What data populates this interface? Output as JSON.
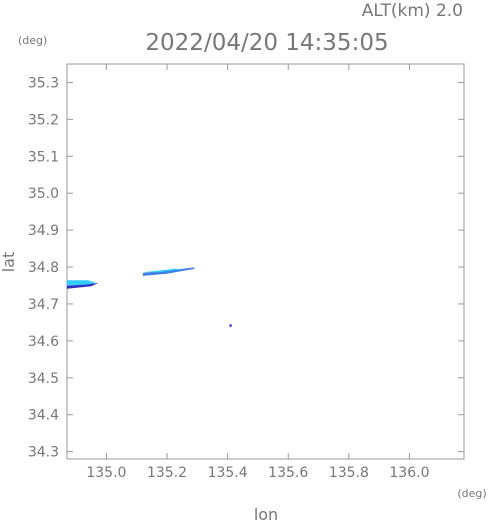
{
  "header": {
    "altitude_text": "ALT(km) 2.0",
    "datetime": "2022/04/20 14:35:05"
  },
  "chart_data": {
    "type": "heatmap",
    "xlabel": "lon",
    "ylabel": "lat",
    "xunit": "(deg)",
    "yunit": "(deg)",
    "xlim": [
      134.87,
      136.18
    ],
    "ylim": [
      34.28,
      35.35
    ],
    "xticks": [
      135.0,
      135.2,
      135.4,
      135.6,
      135.8,
      136.0
    ],
    "yticks": [
      34.3,
      34.4,
      34.5,
      34.6,
      34.7,
      34.8,
      34.9,
      35.0,
      35.1,
      35.2,
      35.3
    ],
    "grid": false,
    "colors": {
      "light": "#33ccff",
      "mid": "#3f7fe6",
      "dark": "#3030c0",
      "axis": "#999999",
      "text": "#777777"
    },
    "echoes": [
      {
        "level": "light",
        "polygon": [
          [
            134.87,
            34.764
          ],
          [
            134.94,
            34.764
          ],
          [
            134.965,
            34.757
          ],
          [
            134.94,
            34.751
          ],
          [
            134.87,
            34.751
          ]
        ]
      },
      {
        "level": "dark",
        "polygon": [
          [
            134.87,
            34.75
          ],
          [
            134.93,
            34.752
          ],
          [
            134.975,
            34.757
          ],
          [
            134.95,
            34.748
          ],
          [
            134.87,
            34.741
          ]
        ]
      },
      {
        "level": "mid",
        "polygon": [
          [
            135.12,
            34.784
          ],
          [
            135.2,
            34.79
          ],
          [
            135.29,
            34.799
          ],
          [
            135.29,
            34.795
          ],
          [
            135.2,
            34.782
          ],
          [
            135.12,
            34.776
          ]
        ]
      },
      {
        "level": "light",
        "polygon": [
          [
            135.12,
            34.786
          ],
          [
            135.18,
            34.791
          ],
          [
            135.23,
            34.796
          ],
          [
            135.24,
            34.793
          ],
          [
            135.17,
            34.786
          ]
        ]
      },
      {
        "level": "dark",
        "polygon": [
          [
            135.405,
            34.643
          ],
          [
            135.412,
            34.646
          ],
          [
            135.414,
            34.64
          ],
          [
            135.408,
            34.637
          ]
        ]
      }
    ]
  }
}
